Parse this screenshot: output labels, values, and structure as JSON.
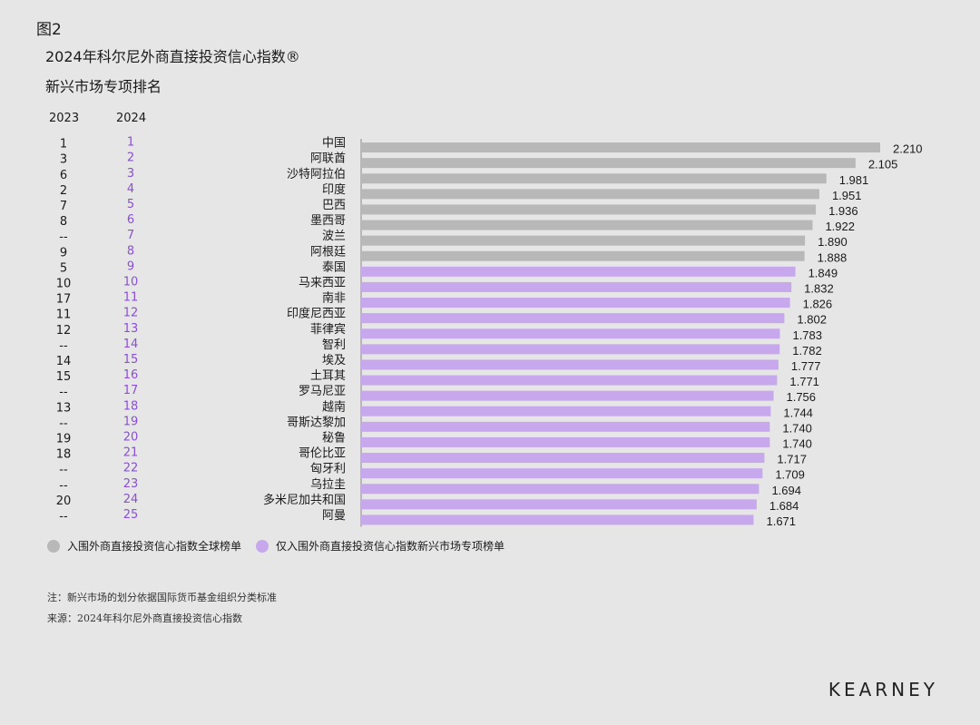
{
  "fig_label": "图2",
  "title": "2024年科尔尼外商直接投资信心指数®",
  "subtitle": "新兴市场专项排名",
  "col_2023": "2023",
  "col_2024": "2024",
  "legend": {
    "global": "入围外商直接投资信心指数全球榜单",
    "emerging": "仅入围外商直接投资信心指数新兴市场专项榜单"
  },
  "colors": {
    "global": "#b8b8b8",
    "emerging": "#c7a8ec",
    "rank2024": "#8a4fd6"
  },
  "note": "注：新兴市场的划分依据国际货币基金组织分类标准",
  "source": "来源：2024年科尔尼外商直接投资信心指数",
  "brand": "KEARNEY",
  "chart_data": {
    "type": "bar",
    "orientation": "horizontal",
    "categories": [
      "中国",
      "阿联酋",
      "沙特阿拉伯",
      "印度",
      "巴西",
      "墨西哥",
      "波兰",
      "阿根廷",
      "泰国",
      "马来西亚",
      "南非",
      "印度尼西亚",
      "菲律宾",
      "智利",
      "埃及",
      "土耳其",
      "罗马尼亚",
      "越南",
      "哥斯达黎加",
      "秘鲁",
      "哥伦比亚",
      "匈牙利",
      "乌拉圭",
      "多米尼加共和国",
      "阿曼"
    ],
    "values": [
      2.21,
      2.105,
      1.981,
      1.951,
      1.936,
      1.922,
      1.89,
      1.888,
      1.849,
      1.832,
      1.826,
      1.802,
      1.783,
      1.782,
      1.777,
      1.771,
      1.756,
      1.744,
      1.74,
      1.74,
      1.717,
      1.709,
      1.694,
      1.684,
      1.671
    ],
    "value_labels": [
      "2.210",
      "2.105",
      "1.981",
      "1.951",
      "1.936",
      "1.922",
      "1.890",
      "1.888",
      "1.849",
      "1.832",
      "1.826",
      "1.802",
      "1.783",
      "1.782",
      "1.777",
      "1.771",
      "1.756",
      "1.744",
      "1.740",
      "1.740",
      "1.717",
      "1.709",
      "1.694",
      "1.684",
      "1.671"
    ],
    "group": [
      "global",
      "global",
      "global",
      "global",
      "global",
      "global",
      "global",
      "global",
      "emerging",
      "emerging",
      "emerging",
      "emerging",
      "emerging",
      "emerging",
      "emerging",
      "emerging",
      "emerging",
      "emerging",
      "emerging",
      "emerging",
      "emerging",
      "emerging",
      "emerging",
      "emerging",
      "emerging"
    ],
    "rank_2023": [
      "1",
      "3",
      "6",
      "2",
      "7",
      "8",
      "--",
      "9",
      "5",
      "10",
      "17",
      "11",
      "12",
      "--",
      "14",
      "15",
      "--",
      "13",
      "--",
      "19",
      "18",
      "--",
      "--",
      "20",
      "--"
    ],
    "rank_2024": [
      "1",
      "2",
      "3",
      "4",
      "5",
      "6",
      "7",
      "8",
      "9",
      "10",
      "11",
      "12",
      "13",
      "14",
      "15",
      "16",
      "17",
      "18",
      "19",
      "20",
      "21",
      "22",
      "23",
      "24",
      "25"
    ],
    "xlim": [
      0,
      2.21
    ]
  }
}
